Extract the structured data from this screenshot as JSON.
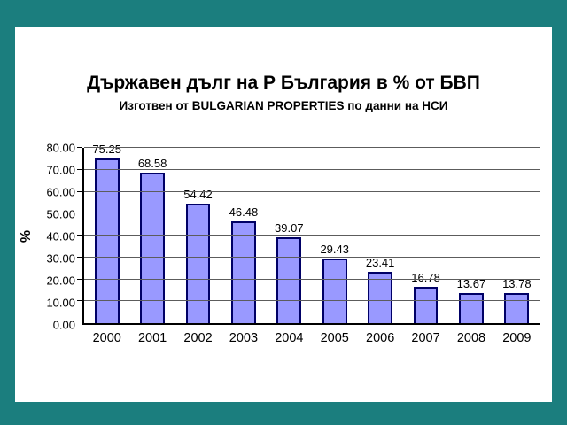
{
  "slide": {
    "background_color": "#1b7e7e",
    "panel_color": "#ffffff"
  },
  "header": {
    "title": "Държавен дълг на Р България в % от БВП",
    "subtitle": "Изготвен от BULGARIAN PROPERTIES по данни на НСИ"
  },
  "chart_data": {
    "type": "bar",
    "title": "Държавен дълг на Р България в % от БВП",
    "subtitle": "Изготвен от BULGARIAN PROPERTIES по данни на НСИ",
    "categories": [
      "2000",
      "2001",
      "2002",
      "2003",
      "2004",
      "2005",
      "2006",
      "2007",
      "2008",
      "2009"
    ],
    "values": [
      75.25,
      68.58,
      54.42,
      46.48,
      39.07,
      29.43,
      23.41,
      16.78,
      13.67,
      13.78
    ],
    "xlabel": "",
    "ylabel": "%",
    "ylim": [
      0,
      80
    ],
    "ytick_step": 10,
    "ytick_labels": [
      "0.00",
      "10.00",
      "20.00",
      "30.00",
      "40.00",
      "50.00",
      "60.00",
      "70.00",
      "80.00"
    ],
    "grid": true,
    "legend": false,
    "bar_color": "#9999FF",
    "bar_border_color": "#000066",
    "data_labels": true
  }
}
